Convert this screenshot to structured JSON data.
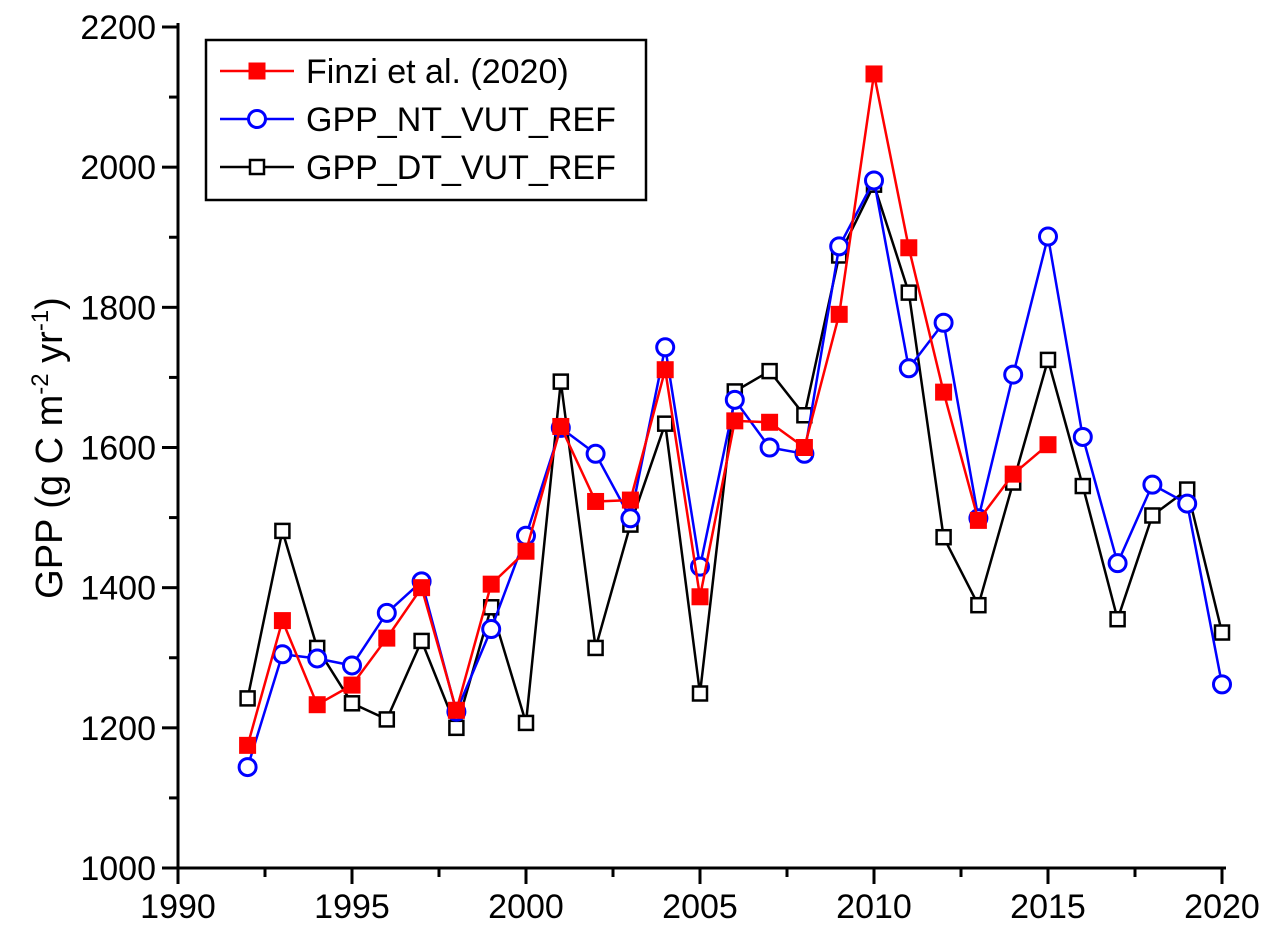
{
  "chart_data": {
    "type": "line",
    "title": "",
    "xlabel": "",
    "ylabel_text": "GPP (g C m",
    "ylabel_sup1": "-2",
    "ylabel_mid": " yr",
    "ylabel_sup2": "-1",
    "ylabel_end": ")",
    "xlim": [
      1990,
      2020
    ],
    "ylim": [
      1000,
      2200
    ],
    "xticks": [
      1990,
      1995,
      2000,
      2005,
      2010,
      2015,
      2020
    ],
    "yticks": [
      1000,
      1200,
      1400,
      1600,
      1800,
      2000,
      2200
    ],
    "legend_position": "top-left",
    "grid": false,
    "series": [
      {
        "name": "Finzi et al. (2020)",
        "color": "#ff0000",
        "marker": "filled-square",
        "x": [
          1992,
          1993,
          1994,
          1995,
          1996,
          1997,
          1998,
          1999,
          2000,
          2001,
          2002,
          2003,
          2004,
          2005,
          2006,
          2007,
          2008,
          2009,
          2010,
          2011,
          2012,
          2013,
          2014,
          2015
        ],
        "y": [
          1175,
          1353,
          1233,
          1261,
          1328,
          1400,
          1225,
          1405,
          1452,
          1630,
          1523,
          1525,
          1711,
          1387,
          1638,
          1636,
          1600,
          1790,
          2133,
          1885,
          1679,
          1496,
          1562,
          1604
        ]
      },
      {
        "name": "GPP_NT_VUT_REF",
        "color": "#0000ff",
        "marker": "open-circle",
        "x": [
          1992,
          1993,
          1994,
          1995,
          1996,
          1997,
          1998,
          1999,
          2000,
          2001,
          2002,
          2003,
          2004,
          2005,
          2006,
          2007,
          2008,
          2009,
          2010,
          2011,
          2012,
          2013,
          2014,
          2015,
          2016,
          2017,
          2018,
          2019,
          2020
        ],
        "y": [
          1144,
          1305,
          1299,
          1289,
          1364,
          1409,
          1223,
          1341,
          1474,
          1628,
          1591,
          1499,
          1743,
          1430,
          1668,
          1600,
          1591,
          1887,
          1981,
          1713,
          1778,
          1499,
          1704,
          1901,
          1615,
          1435,
          1547,
          1520,
          1262
        ]
      },
      {
        "name": "GPP_DT_VUT_REF",
        "color": "#000000",
        "marker": "open-square",
        "x": [
          1992,
          1993,
          1994,
          1995,
          1996,
          1997,
          1998,
          1999,
          2000,
          2001,
          2002,
          2003,
          2004,
          2005,
          2006,
          2007,
          2008,
          2009,
          2010,
          2011,
          2012,
          2013,
          2014,
          2015,
          2016,
          2017,
          2018,
          2019,
          2020
        ],
        "y": [
          1242,
          1481,
          1314,
          1235,
          1212,
          1324,
          1200,
          1372,
          1207,
          1694,
          1314,
          1490,
          1634,
          1249,
          1680,
          1709,
          1646,
          1874,
          1975,
          1821,
          1472,
          1375,
          1550,
          1725,
          1545,
          1355,
          1503,
          1540,
          1336
        ]
      }
    ]
  }
}
